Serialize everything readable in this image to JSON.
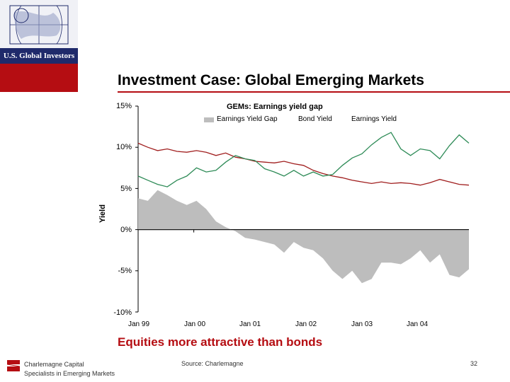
{
  "logo": {
    "text": "U.S. Global Investors"
  },
  "header": {
    "title": "Investment Case: Global Emerging Markets"
  },
  "subtitle": "Equities more attractive than bonds",
  "footer": {
    "company_line1": "Charlemagne Capital",
    "company_line2": "Specialists in Emerging Markets",
    "source": "Source:  Charlemagne",
    "page_number": "32"
  },
  "colors": {
    "brand_red": "#b50d12",
    "brand_navy": "#1f2a6b",
    "gap_fill": "#bdbdbd",
    "bond_line": "#a01e1e",
    "earnings_line": "#2e8b57"
  },
  "chart_data": {
    "type": "area",
    "title": "GEMs: Earnings yield gap",
    "ylabel": "Yield",
    "ylim": [
      -10,
      15
    ],
    "yticks": [
      "15%",
      "10%",
      "5%",
      "0%",
      "-5%",
      "-10%"
    ],
    "xlabels": [
      "Jan 99",
      "Jan 00",
      "Jan 01",
      "Jan 02",
      "Jan 03",
      "Jan 04"
    ],
    "x": [
      "Jan 99",
      "Mar 99",
      "May 99",
      "Jul 99",
      "Sep 99",
      "Nov 99",
      "Jan 00",
      "Mar 00",
      "May 00",
      "Jul 00",
      "Sep 00",
      "Nov 00",
      "Jan 01",
      "Mar 01",
      "May 01",
      "Jul 01",
      "Sep 01",
      "Nov 01",
      "Jan 02",
      "Mar 02",
      "May 02",
      "Jul 02",
      "Sep 02",
      "Nov 02",
      "Jan 03",
      "Mar 03",
      "May 03",
      "Jul 03",
      "Sep 03",
      "Nov 03",
      "Jan 04",
      "Mar 04",
      "May 04",
      "Jul 04",
      "Sep 04"
    ],
    "series": [
      {
        "name": "Earnings Yield Gap",
        "kind": "area",
        "values": [
          3.8,
          3.5,
          4.8,
          4.2,
          3.5,
          3.0,
          3.5,
          2.5,
          1.0,
          0.3,
          -0.2,
          -1.0,
          -1.2,
          -1.5,
          -1.8,
          -2.8,
          -1.5,
          -2.2,
          -2.5,
          -3.5,
          -5.0,
          -6.0,
          -5.0,
          -6.5,
          -6.0,
          -4.0,
          -4.0,
          -4.2,
          -3.5,
          -2.5,
          -4.0,
          -3.0,
          -5.5,
          -5.8,
          -4.8
        ]
      },
      {
        "name": "Bond Yield",
        "kind": "line",
        "values": [
          10.5,
          10.0,
          9.6,
          9.8,
          9.5,
          9.4,
          9.6,
          9.4,
          9.0,
          9.3,
          8.8,
          8.6,
          8.3,
          8.2,
          8.1,
          8.3,
          8.0,
          7.8,
          7.2,
          6.8,
          6.5,
          6.3,
          6.0,
          5.8,
          5.6,
          5.8,
          5.6,
          5.7,
          5.6,
          5.4,
          5.7,
          6.1,
          5.8,
          5.5,
          5.4
        ]
      },
      {
        "name": "Earnings Yield",
        "kind": "line",
        "values": [
          6.5,
          6.0,
          5.5,
          5.2,
          6.0,
          6.5,
          7.5,
          7.0,
          7.2,
          8.2,
          9.0,
          8.6,
          8.4,
          7.4,
          7.0,
          6.5,
          7.2,
          6.5,
          7.0,
          6.5,
          6.7,
          7.8,
          8.7,
          9.2,
          10.3,
          11.2,
          11.8,
          9.8,
          9.0,
          9.8,
          9.6,
          8.6,
          10.2,
          11.5,
          10.5
        ]
      }
    ],
    "legend": [
      "Earnings Yield Gap",
      "Bond Yield",
      "Earnings Yield"
    ],
    "legend_position": "top",
    "grid": false
  }
}
